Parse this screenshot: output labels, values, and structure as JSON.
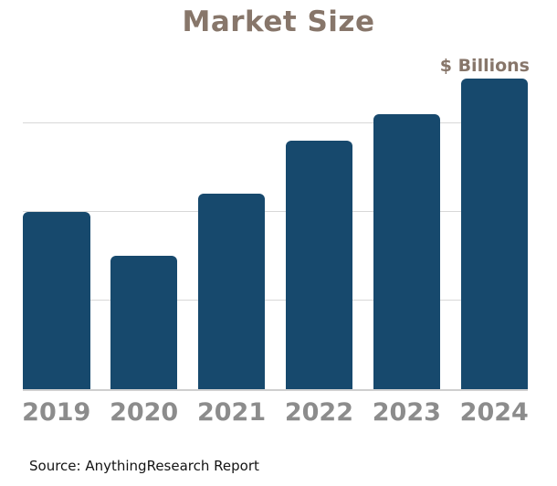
{
  "title": "Market Size",
  "units_label": "$ Billions",
  "source_note": "Source: AnythingResearch Report",
  "colors": {
    "bar": "#17496d",
    "title_text": "#87766a",
    "year_labels": "#8c8c8c",
    "gridline": "#d8d8d8",
    "baseline": "#cfcfcf",
    "source_text": "#141414",
    "background": "#ffffff"
  },
  "chart_data": {
    "type": "bar",
    "title": "Market Size",
    "ylabel": "$ Billions",
    "xlabel": "",
    "categories": [
      "2019",
      "2020",
      "2021",
      "2022",
      "2023",
      "2024"
    ],
    "values": [
      2.0,
      1.5,
      2.2,
      2.8,
      3.1,
      3.5
    ],
    "ylim": [
      0,
      3.77
    ],
    "gridlines": [
      1,
      2,
      3
    ],
    "grid": "horizontal",
    "value_axis_tick_labels": "none",
    "legend": "none",
    "annotation": "$ Billions shown at top right; no numeric y-axis labels; values estimated in gridline units"
  }
}
